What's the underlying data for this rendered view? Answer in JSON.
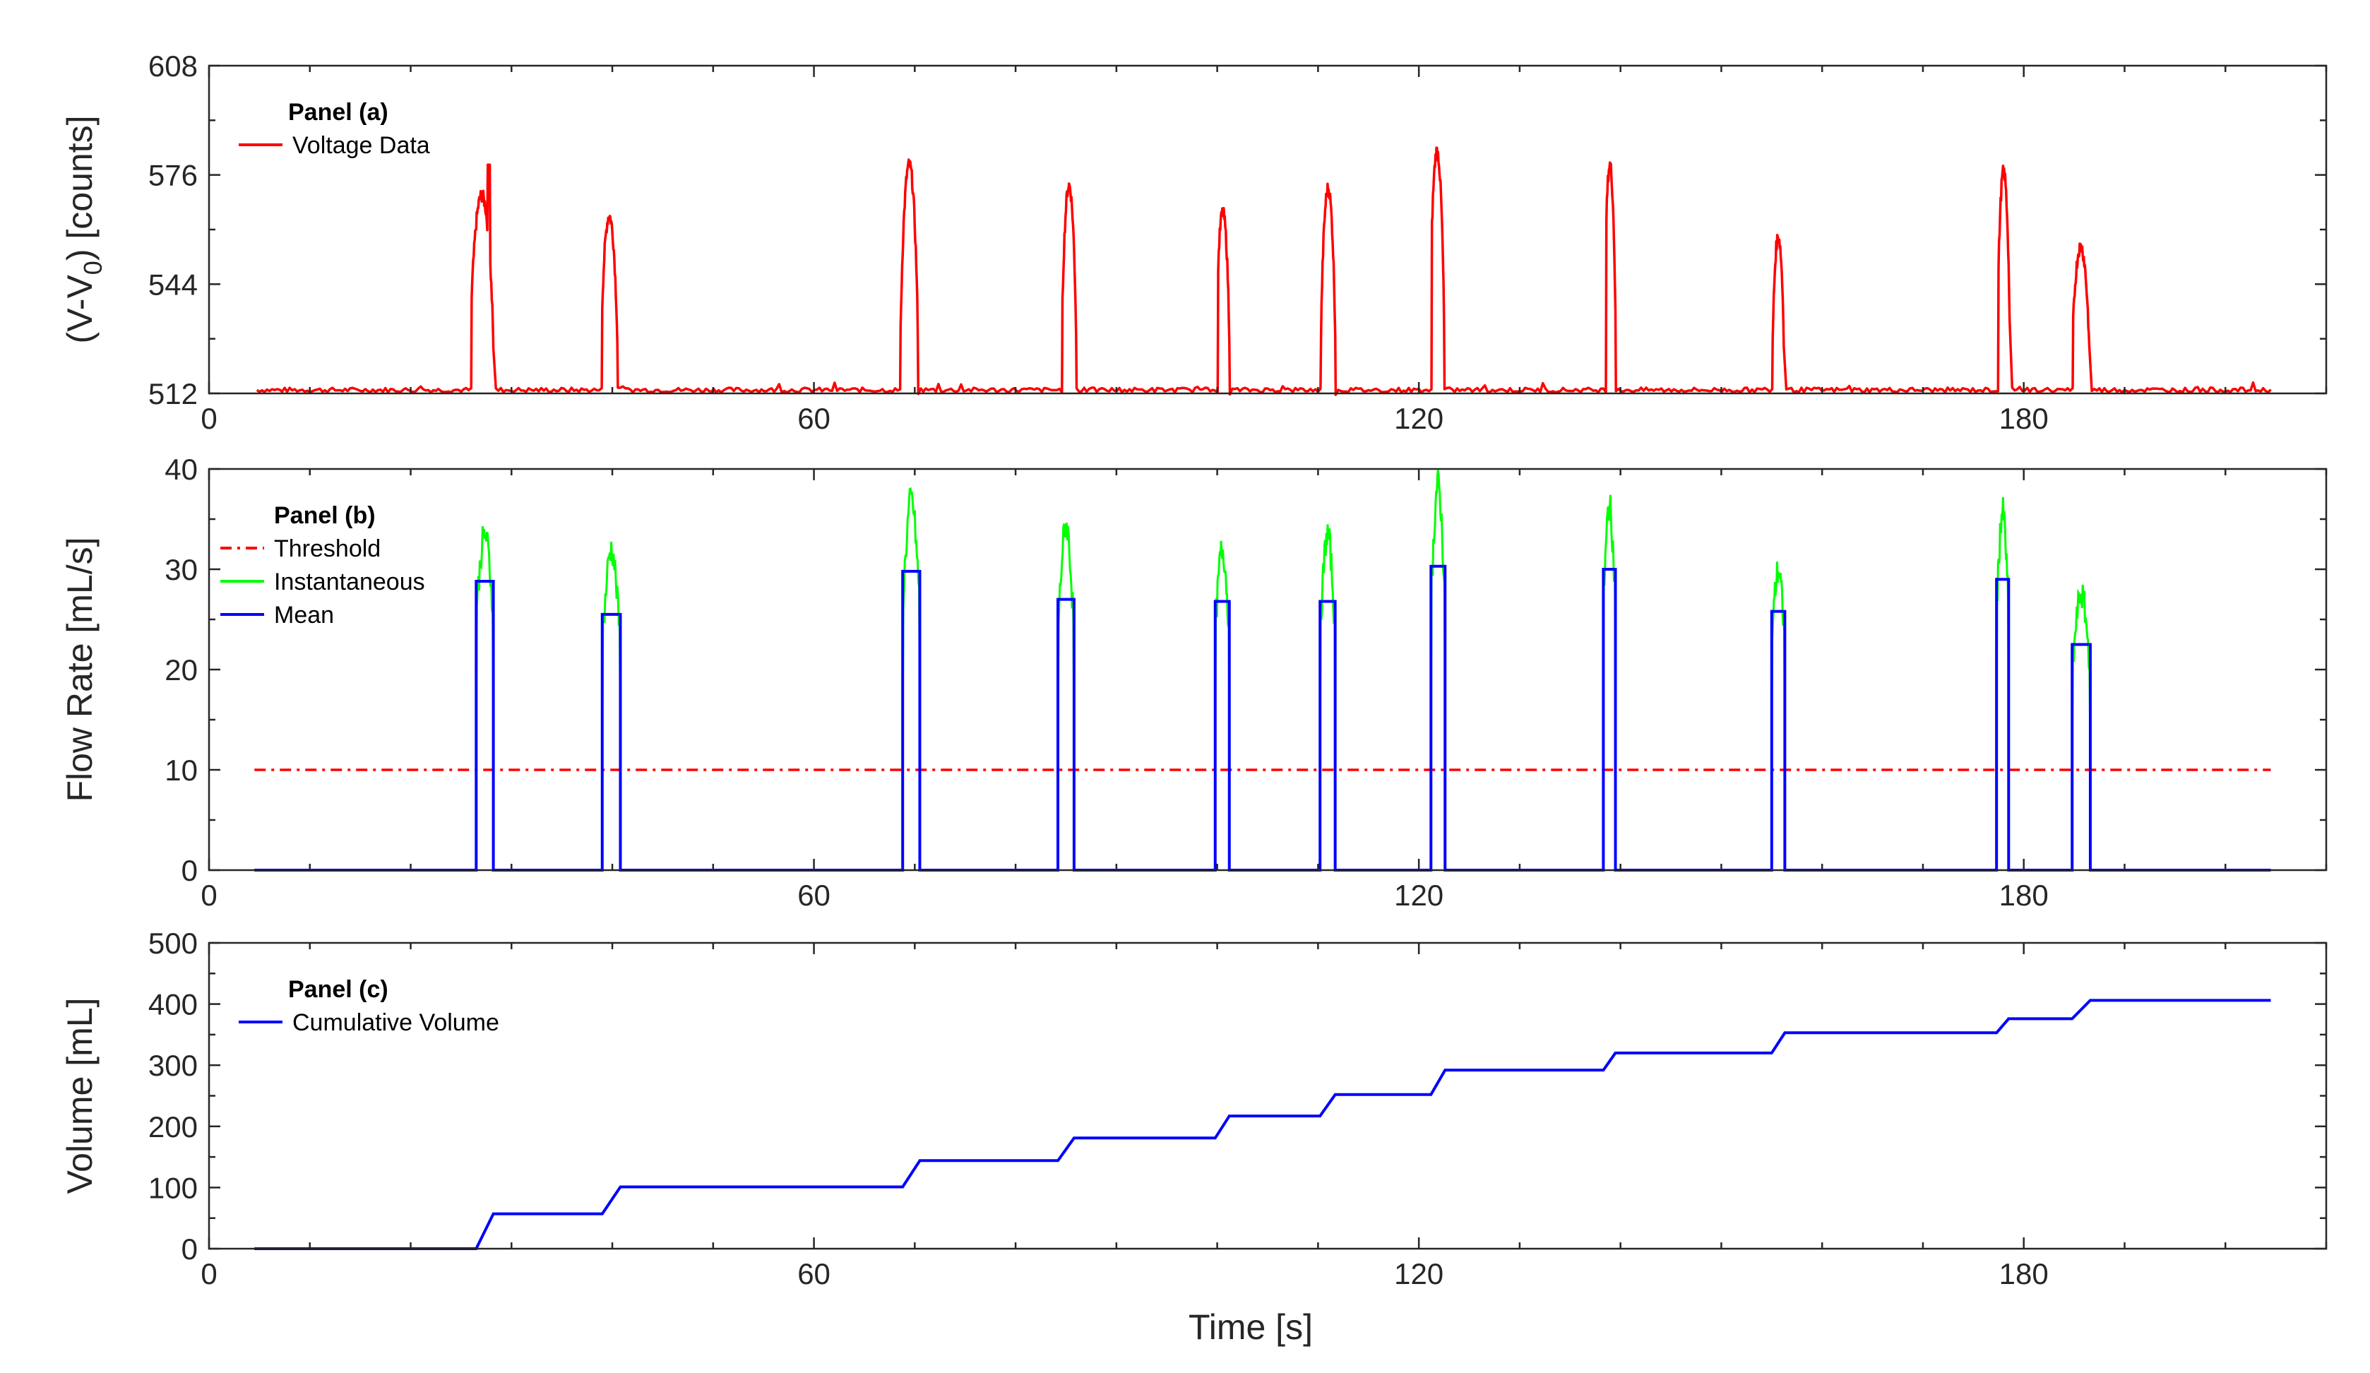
{
  "chart_data": [
    {
      "id": "a",
      "type": "line",
      "legend_title": "Panel (a)",
      "xlabel": "",
      "ylabel": "(V-V",
      "ylabel_sub": "0",
      "ylabel_suffix": ") [counts]",
      "xlim": [
        0,
        210
      ],
      "ylim": [
        512,
        608
      ],
      "xticks": [
        0,
        60,
        120,
        180
      ],
      "yticks": [
        512,
        544,
        576,
        608
      ],
      "legend_position": "top-left",
      "baseline": 513,
      "x_start": 4.5,
      "x_end": 204.5,
      "pulses": [
        {
          "t0": 25.8,
          "t1": 28.2,
          "peak": 570,
          "tip_t": 27.7,
          "tip": 579
        },
        {
          "t0": 38.8,
          "t1": 40.5,
          "peak": 564
        },
        {
          "t0": 68.5,
          "t1": 70.3,
          "peak": 579
        },
        {
          "t0": 84.5,
          "t1": 86.0,
          "peak": 573
        },
        {
          "t0": 99.8,
          "t1": 101.2,
          "peak": 565
        },
        {
          "t0": 110.2,
          "t1": 111.7,
          "peak": 572
        },
        {
          "t0": 121.0,
          "t1": 122.5,
          "peak": 583
        },
        {
          "t0": 138.3,
          "t1": 139.5,
          "peak": 579
        },
        {
          "t0": 155.0,
          "t1": 156.2,
          "peak": 558
        },
        {
          "t0": 177.3,
          "t1": 178.6,
          "peak": 577
        },
        {
          "t0": 184.7,
          "t1": 186.5,
          "peak": 555
        }
      ],
      "series": [
        {
          "name": "Voltage Data",
          "color": "#ff0000",
          "style": "solid"
        }
      ]
    },
    {
      "id": "b",
      "type": "line",
      "legend_title": "Panel (b)",
      "xlabel": "",
      "ylabel": "Flow Rate [mL/s]",
      "xlim": [
        0,
        210
      ],
      "ylim": [
        0,
        40
      ],
      "xticks": [
        0,
        60,
        120,
        180
      ],
      "yticks": [
        0,
        10,
        20,
        30,
        40
      ],
      "legend_position": "top-left",
      "threshold": 10,
      "x_start": 4.5,
      "x_end": 204.5,
      "events": [
        {
          "t0": 26.5,
          "t1": 28.2,
          "mean": 28.8,
          "peak": 33.5
        },
        {
          "t0": 39.0,
          "t1": 40.8,
          "mean": 25.5,
          "peak": 32.0
        },
        {
          "t0": 68.8,
          "t1": 70.5,
          "mean": 29.8,
          "peak": 37.0
        },
        {
          "t0": 84.2,
          "t1": 85.8,
          "mean": 27.0,
          "peak": 34.5
        },
        {
          "t0": 99.8,
          "t1": 101.2,
          "mean": 26.8,
          "peak": 32.0
        },
        {
          "t0": 110.2,
          "t1": 111.7,
          "mean": 26.8,
          "peak": 33.5
        },
        {
          "t0": 121.2,
          "t1": 122.6,
          "mean": 30.3,
          "peak": 38.5
        },
        {
          "t0": 138.3,
          "t1": 139.5,
          "mean": 30.0,
          "peak": 36.3
        },
        {
          "t0": 155.0,
          "t1": 156.3,
          "mean": 25.8,
          "peak": 29.8
        },
        {
          "t0": 177.3,
          "t1": 178.5,
          "mean": 29.0,
          "peak": 35.8
        },
        {
          "t0": 184.8,
          "t1": 186.6,
          "mean": 22.5,
          "peak": 27.5
        }
      ],
      "series": [
        {
          "name": "Threshold",
          "color": "#ff0000",
          "style": "dash-dot"
        },
        {
          "name": "Instantaneous",
          "color": "#00ff00",
          "style": "solid"
        },
        {
          "name": "Mean",
          "color": "#0000ff",
          "style": "solid"
        }
      ]
    },
    {
      "id": "c",
      "type": "line",
      "legend_title": "Panel (c)",
      "xlabel": "Time [s]",
      "ylabel": "Volume [mL]",
      "xlim": [
        0,
        210
      ],
      "ylim": [
        0,
        500
      ],
      "xticks": [
        0,
        60,
        120,
        180
      ],
      "yticks": [
        0,
        100,
        200,
        300,
        400,
        500
      ],
      "legend_position": "top-left",
      "series": [
        {
          "name": "Cumulative Volume",
          "color": "#0000ff",
          "style": "solid",
          "x": [
            4.5,
            26.5,
            28.2,
            39.0,
            40.8,
            68.8,
            70.5,
            84.2,
            85.8,
            99.8,
            101.2,
            110.2,
            111.7,
            121.2,
            122.6,
            138.3,
            139.5,
            155.0,
            156.3,
            177.3,
            178.5,
            184.8,
            186.6,
            204.5
          ],
          "y": [
            0,
            0,
            57,
            57,
            101,
            101,
            144,
            144,
            181,
            181,
            217,
            217,
            252,
            252,
            292,
            292,
            320,
            320,
            353,
            353,
            376,
            376,
            406,
            406
          ]
        }
      ]
    }
  ]
}
